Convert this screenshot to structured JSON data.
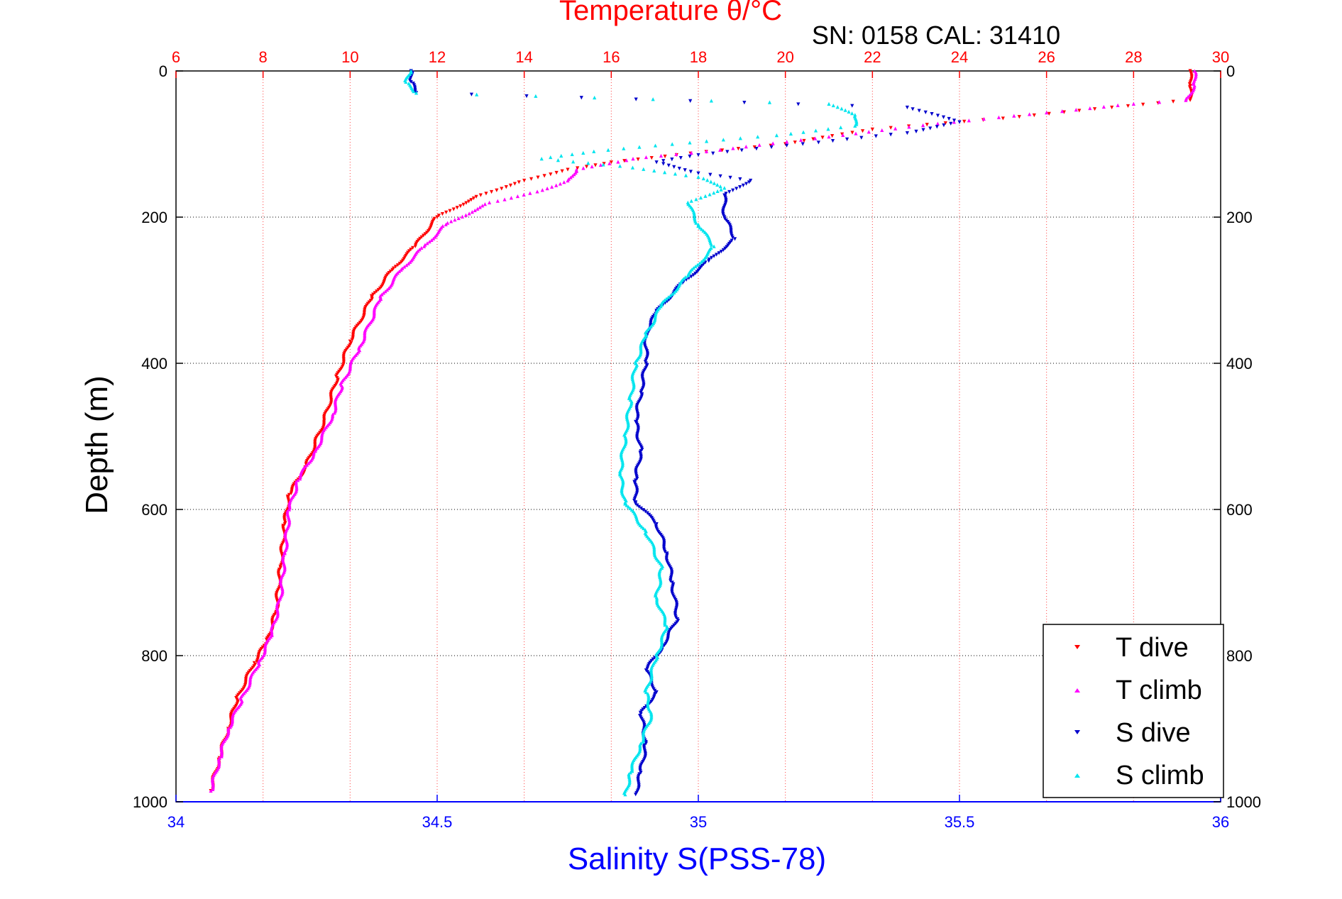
{
  "chart_data": {
    "type": "scatter",
    "title": "Temperature θ/°C",
    "subtitle": "SN: 0158  CAL: 31410",
    "ylabel": "Depth (m)",
    "x_top_label": "Temperature θ/°C",
    "x_bottom_label": "Salinity S(PSS-78)",
    "ylim": [
      0,
      1000
    ],
    "y_reversed": true,
    "y_ticks": [
      "0",
      "200",
      "400",
      "600",
      "800",
      "1000"
    ],
    "temp_axis": {
      "range": [
        6,
        30
      ],
      "ticks": [
        "6",
        "8",
        "10",
        "12",
        "14",
        "16",
        "18",
        "20",
        "22",
        "24",
        "26",
        "28",
        "30"
      ]
    },
    "sal_axis": {
      "range": [
        34,
        36
      ],
      "ticks": [
        "34",
        "34.5",
        "35",
        "35.5",
        "36"
      ]
    },
    "grid": true,
    "legend_position": "bottom-right",
    "series": [
      {
        "name": "T dive",
        "axis": "temperature",
        "color": "#ff0000",
        "marker": "triangle-down",
        "points": [
          [
            29.3,
            0
          ],
          [
            29.3,
            20
          ],
          [
            29.3,
            40
          ],
          [
            27.5,
            50
          ],
          [
            25,
            65
          ],
          [
            22,
            80
          ],
          [
            20,
            100
          ],
          [
            17.5,
            115
          ],
          [
            16,
            125
          ],
          [
            15,
            135
          ],
          [
            14,
            150
          ],
          [
            13,
            170
          ],
          [
            12,
            200
          ],
          [
            11.5,
            240
          ],
          [
            11,
            270
          ],
          [
            10.5,
            310
          ],
          [
            10,
            370
          ],
          [
            9.7,
            420
          ],
          [
            9.4,
            480
          ],
          [
            9.0,
            540
          ],
          [
            8.6,
            580
          ],
          [
            8.5,
            620
          ],
          [
            8.4,
            680
          ],
          [
            8.3,
            740
          ],
          [
            8.1,
            780
          ],
          [
            7.8,
            810
          ],
          [
            7.4,
            860
          ],
          [
            7.2,
            900
          ],
          [
            7.0,
            940
          ],
          [
            6.8,
            985
          ]
        ]
      },
      {
        "name": "T climb",
        "axis": "temperature",
        "color": "#ff00ff",
        "marker": "triangle-up",
        "points": [
          [
            29.4,
            0
          ],
          [
            29.4,
            20
          ],
          [
            29.2,
            40
          ],
          [
            28,
            45
          ],
          [
            26,
            57
          ],
          [
            23.5,
            72
          ],
          [
            21,
            90
          ],
          [
            18.5,
            108
          ],
          [
            16.5,
            120
          ],
          [
            15.2,
            135
          ],
          [
            15,
            150
          ],
          [
            14.3,
            165
          ],
          [
            13.2,
            180
          ],
          [
            12.2,
            210
          ],
          [
            11.7,
            240
          ],
          [
            11.2,
            270
          ],
          [
            10.7,
            310
          ],
          [
            10.2,
            380
          ],
          [
            9.8,
            430
          ],
          [
            9.6,
            470
          ],
          [
            9.2,
            520
          ],
          [
            8.8,
            560
          ],
          [
            8.6,
            600
          ],
          [
            8.5,
            660
          ],
          [
            8.4,
            720
          ],
          [
            8.2,
            770
          ],
          [
            7.9,
            810
          ],
          [
            7.5,
            860
          ],
          [
            7.2,
            900
          ],
          [
            7.0,
            940
          ],
          [
            6.8,
            985
          ]
        ]
      },
      {
        "name": "S dive",
        "axis": "salinity",
        "color": "#0000cc",
        "marker": "triangle-down",
        "points": [
          [
            34.45,
            0
          ],
          [
            34.45,
            15
          ],
          [
            34.46,
            30
          ],
          [
            35.4,
            50
          ],
          [
            35.5,
            70
          ],
          [
            35.4,
            85
          ],
          [
            35.2,
            100
          ],
          [
            35.0,
            115
          ],
          [
            34.92,
            125
          ],
          [
            35.0,
            140
          ],
          [
            35.1,
            150
          ],
          [
            35.05,
            170
          ],
          [
            35.05,
            200
          ],
          [
            35.07,
            230
          ],
          [
            35.02,
            260
          ],
          [
            34.97,
            290
          ],
          [
            34.92,
            330
          ],
          [
            34.9,
            360
          ],
          [
            34.9,
            400
          ],
          [
            34.89,
            440
          ],
          [
            34.88,
            480
          ],
          [
            34.89,
            520
          ],
          [
            34.88,
            560
          ],
          [
            34.88,
            590
          ],
          [
            34.92,
            620
          ],
          [
            34.94,
            660
          ],
          [
            34.95,
            700
          ],
          [
            34.96,
            750
          ],
          [
            34.93,
            790
          ],
          [
            34.9,
            820
          ],
          [
            34.92,
            850
          ],
          [
            34.89,
            880
          ],
          [
            34.9,
            920
          ],
          [
            34.89,
            960
          ],
          [
            34.88,
            990
          ]
        ]
      },
      {
        "name": "S climb",
        "axis": "salinity",
        "color": "#00e5ee",
        "marker": "triangle-up",
        "points": [
          [
            34.45,
            0
          ],
          [
            34.44,
            15
          ],
          [
            34.46,
            30
          ],
          [
            35.25,
            45
          ],
          [
            35.3,
            60
          ],
          [
            35.3,
            75
          ],
          [
            35.15,
            88
          ],
          [
            34.95,
            100
          ],
          [
            34.8,
            110
          ],
          [
            34.7,
            120
          ],
          [
            34.85,
            130
          ],
          [
            35.0,
            145
          ],
          [
            35.05,
            160
          ],
          [
            34.98,
            180
          ],
          [
            35.0,
            210
          ],
          [
            35.03,
            240
          ],
          [
            34.98,
            280
          ],
          [
            34.93,
            320
          ],
          [
            34.9,
            360
          ],
          [
            34.88,
            400
          ],
          [
            34.87,
            450
          ],
          [
            34.86,
            500
          ],
          [
            34.85,
            550
          ],
          [
            34.86,
            590
          ],
          [
            34.9,
            630
          ],
          [
            34.93,
            680
          ],
          [
            34.92,
            720
          ],
          [
            34.94,
            760
          ],
          [
            34.92,
            800
          ],
          [
            34.9,
            850
          ],
          [
            34.91,
            880
          ],
          [
            34.89,
            920
          ],
          [
            34.87,
            960
          ],
          [
            34.86,
            990
          ]
        ]
      }
    ]
  }
}
